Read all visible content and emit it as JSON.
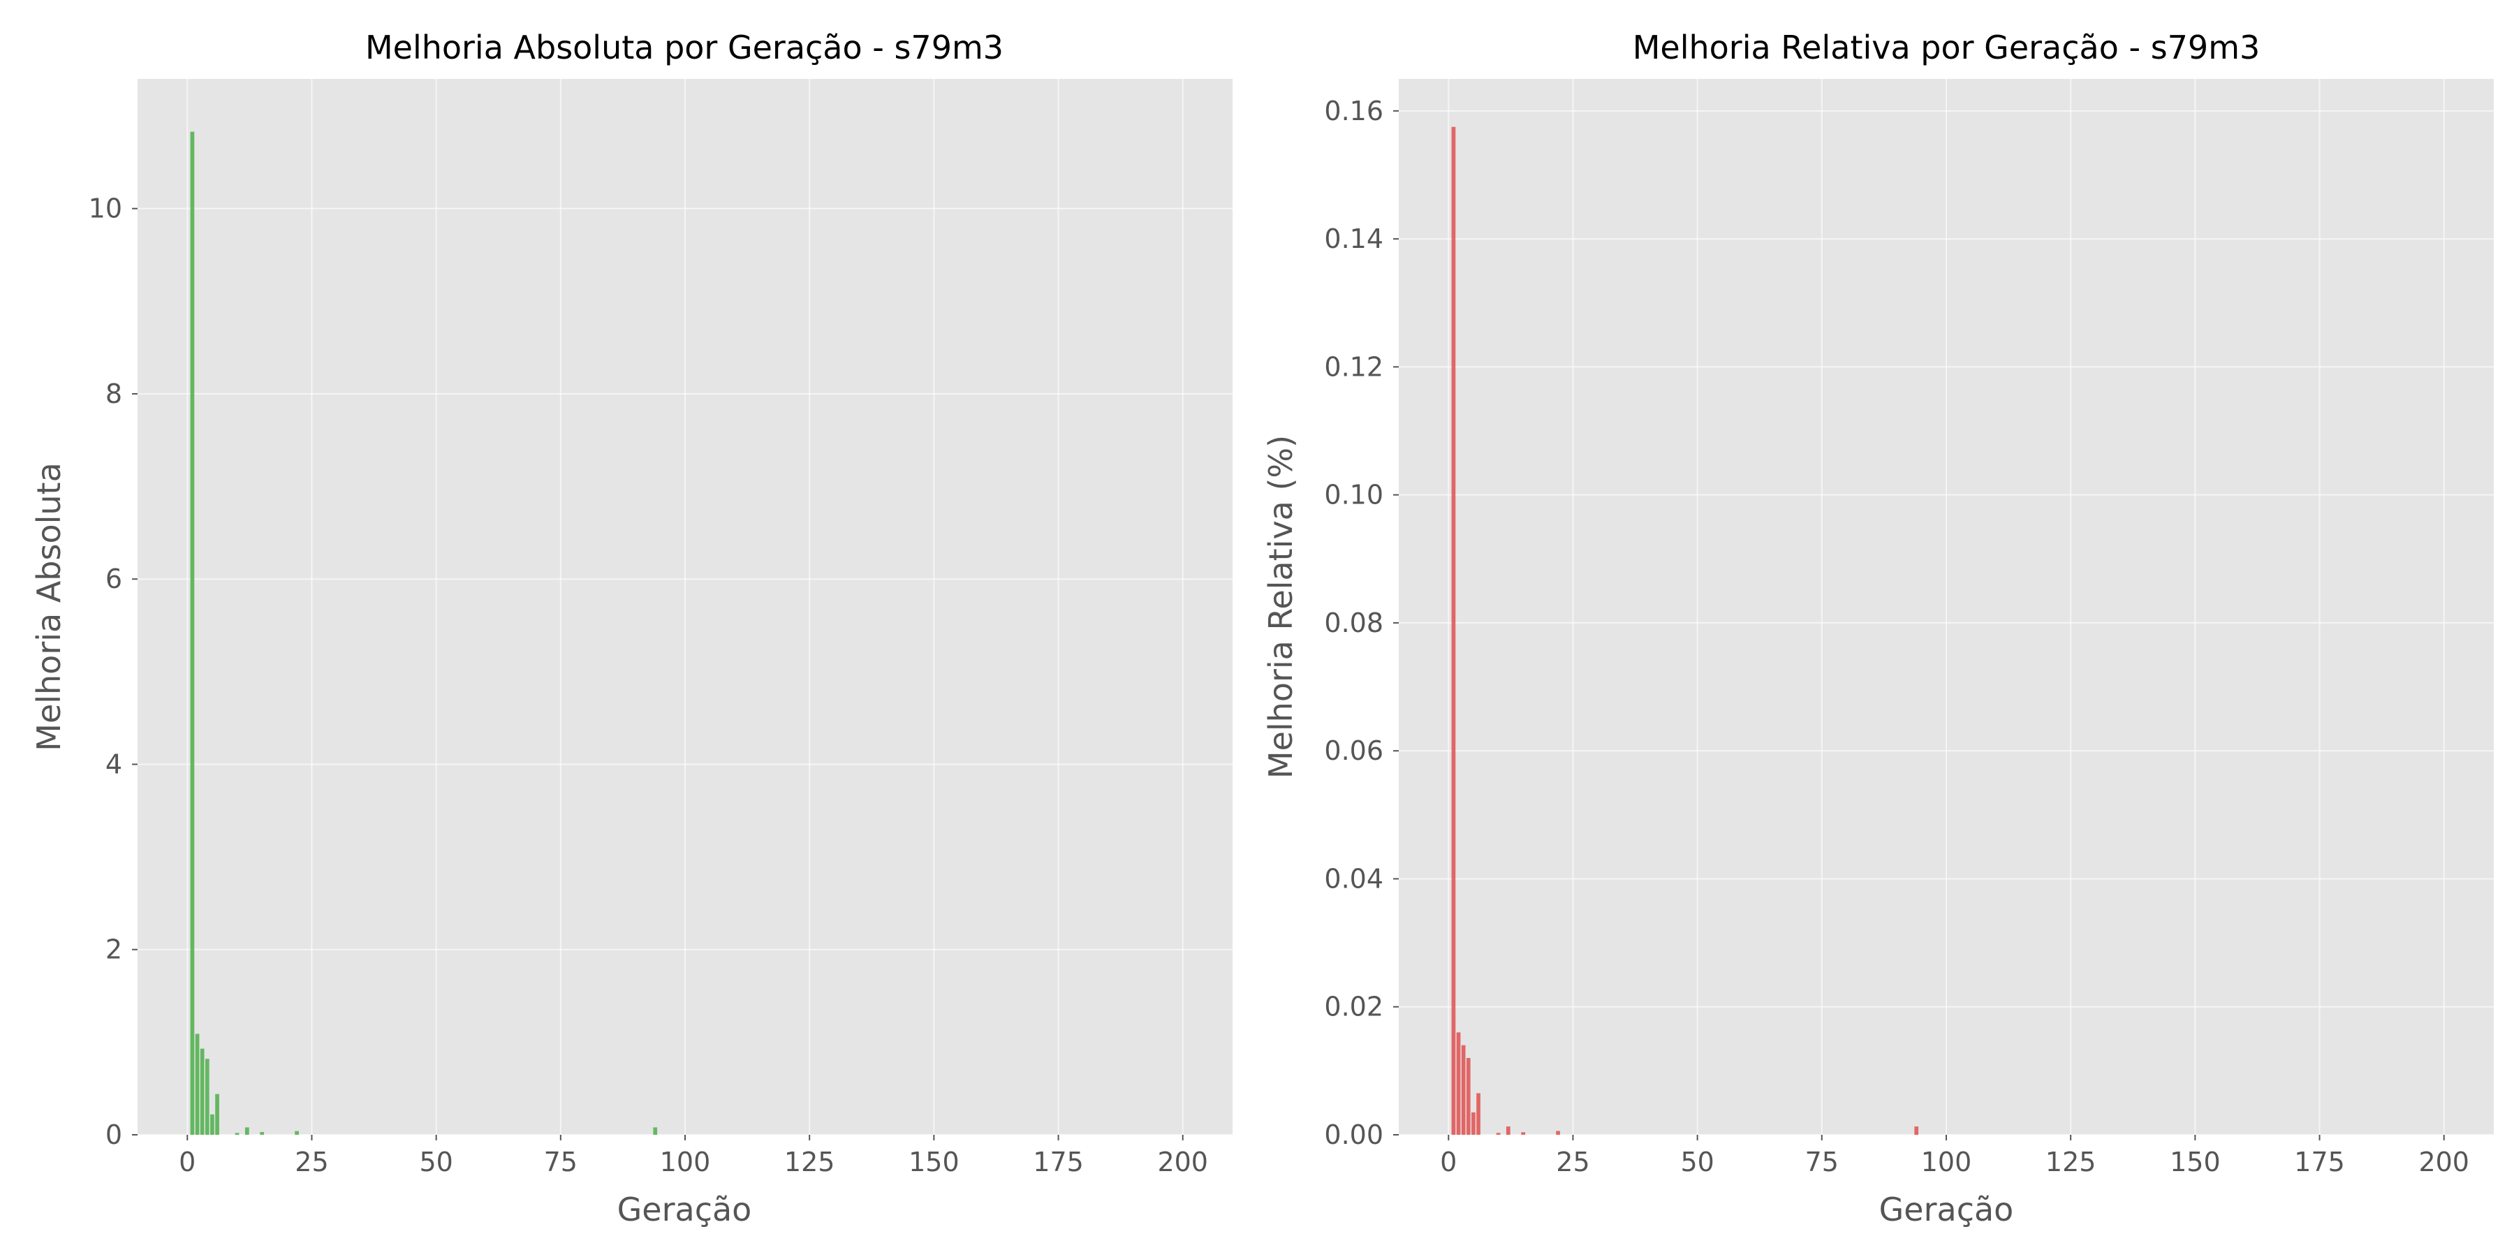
{
  "chart_data": [
    {
      "type": "bar",
      "title": "Melhoria Absoluta por Geração - s79m3",
      "xlabel": "Geração",
      "ylabel": "Melhoria Absoluta",
      "xlim": [
        -10,
        210
      ],
      "ylim": [
        0,
        11.4
      ],
      "xticks": [
        0,
        25,
        50,
        75,
        100,
        125,
        150,
        175,
        200
      ],
      "yticks": [
        0,
        2,
        4,
        6,
        8,
        10
      ],
      "ytick_labels": [
        "0",
        "2",
        "4",
        "6",
        "8",
        "10"
      ],
      "grid": true,
      "bar_color": "#4daf4a",
      "x": [
        1,
        2,
        3,
        4,
        5,
        6,
        10,
        12,
        15,
        22,
        94
      ],
      "values": [
        10.83,
        1.09,
        0.93,
        0.82,
        0.22,
        0.44,
        0.02,
        0.08,
        0.03,
        0.04,
        0.08
      ]
    },
    {
      "type": "bar",
      "title": "Melhoria Relativa por Geração - s79m3",
      "xlabel": "Geração",
      "ylabel": "Melhoria Relativa (%)",
      "xlim": [
        -10,
        210
      ],
      "ylim": [
        0,
        0.165
      ],
      "xticks": [
        0,
        25,
        50,
        75,
        100,
        125,
        150,
        175,
        200
      ],
      "yticks": [
        0,
        0.02,
        0.04,
        0.06,
        0.08,
        0.1,
        0.12,
        0.14,
        0.16
      ],
      "ytick_labels": [
        "0.00",
        "0.02",
        "0.04",
        "0.06",
        "0.08",
        "0.10",
        "0.12",
        "0.14",
        "0.16"
      ],
      "grid": true,
      "bar_color": "#e05050",
      "x": [
        1,
        2,
        3,
        4,
        5,
        6,
        10,
        12,
        15,
        22,
        94
      ],
      "values": [
        0.1575,
        0.016,
        0.014,
        0.012,
        0.0035,
        0.0065,
        0.0003,
        0.0013,
        0.0004,
        0.0006,
        0.0013
      ]
    }
  ]
}
